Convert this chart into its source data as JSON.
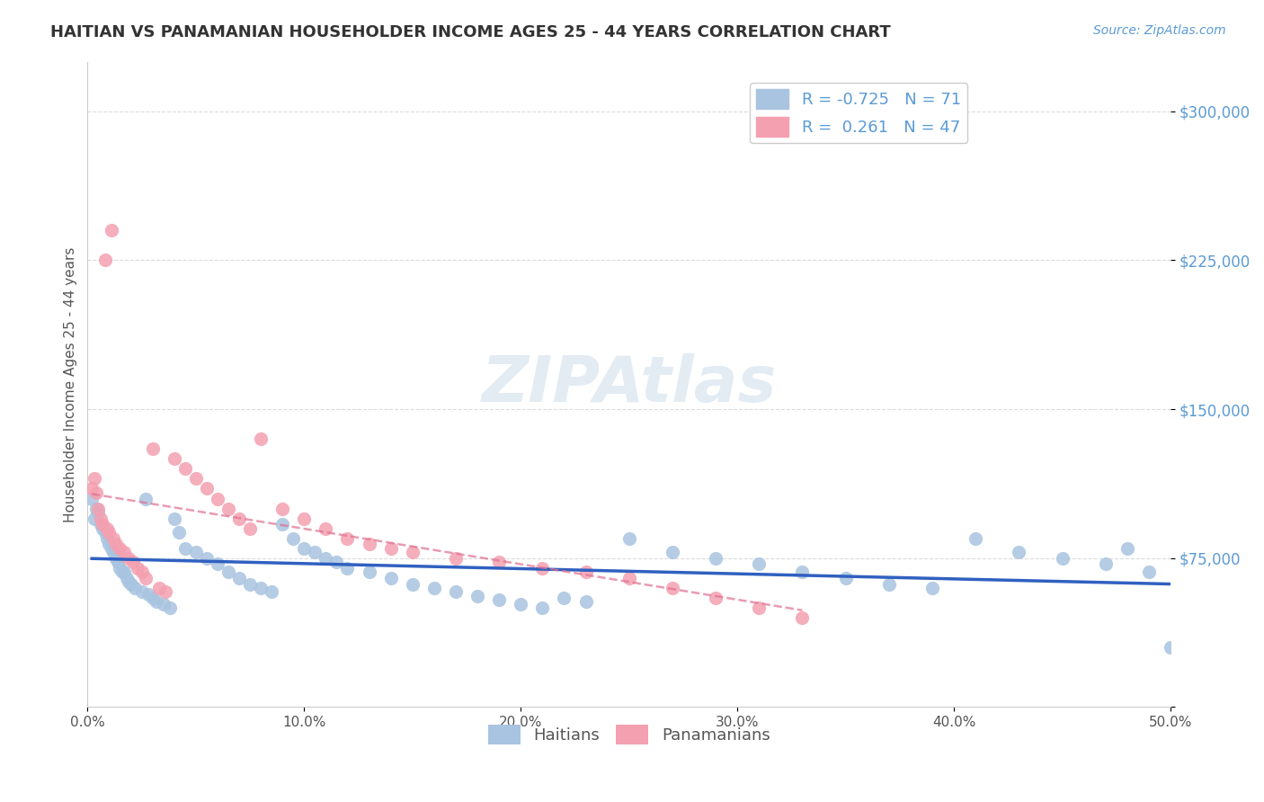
{
  "title": "HAITIAN VS PANAMANIAN HOUSEHOLDER INCOME AGES 25 - 44 YEARS CORRELATION CHART",
  "source": "Source: ZipAtlas.com",
  "xlabel_bottom": "",
  "ylabel": "Householder Income Ages 25 - 44 years",
  "xlim": [
    0.0,
    0.5
  ],
  "ylim": [
    0,
    325000
  ],
  "yticks": [
    0,
    75000,
    150000,
    225000,
    300000
  ],
  "ytick_labels": [
    "",
    "$75,000",
    "$150,000",
    "$225,000",
    "$300,000"
  ],
  "xticks": [
    0.0,
    0.1,
    0.2,
    0.3,
    0.4,
    0.5
  ],
  "xtick_labels": [
    "0.0%",
    "10.0%",
    "20.0%",
    "30.0%",
    "40.0%",
    "50.0%"
  ],
  "haitian_color": "#a8c4e0",
  "panamanian_color": "#f4a0b0",
  "haitian_line_color": "#3060c0",
  "panamanian_line_color": "#e07090",
  "legend_R_haitian": "-0.725",
  "legend_N_haitian": "71",
  "legend_R_panamanian": "0.261",
  "legend_N_panamanian": "47",
  "title_color": "#333333",
  "source_color": "#5b9bd5",
  "yaxis_label_color": "#5b9bd5",
  "background_color": "#ffffff",
  "grid_color": "#cccccc",
  "watermark": "ZIPAtlas",
  "haitian_x": [
    0.002,
    0.003,
    0.004,
    0.005,
    0.006,
    0.007,
    0.008,
    0.009,
    0.01,
    0.011,
    0.012,
    0.013,
    0.014,
    0.015,
    0.016,
    0.017,
    0.018,
    0.019,
    0.02,
    0.022,
    0.025,
    0.027,
    0.028,
    0.03,
    0.032,
    0.035,
    0.038,
    0.04,
    0.042,
    0.045,
    0.05,
    0.055,
    0.06,
    0.065,
    0.07,
    0.075,
    0.08,
    0.085,
    0.09,
    0.095,
    0.1,
    0.105,
    0.11,
    0.115,
    0.12,
    0.13,
    0.14,
    0.15,
    0.16,
    0.17,
    0.18,
    0.19,
    0.2,
    0.21,
    0.22,
    0.23,
    0.25,
    0.27,
    0.29,
    0.31,
    0.33,
    0.35,
    0.37,
    0.39,
    0.41,
    0.43,
    0.45,
    0.47,
    0.49,
    0.5,
    0.48
  ],
  "haitian_y": [
    105000,
    95000,
    100000,
    98000,
    92000,
    90000,
    88000,
    85000,
    82000,
    80000,
    78000,
    75000,
    73000,
    70000,
    68000,
    68000,
    65000,
    63000,
    62000,
    60000,
    58000,
    105000,
    57000,
    55000,
    53000,
    52000,
    50000,
    95000,
    88000,
    80000,
    78000,
    75000,
    72000,
    68000,
    65000,
    62000,
    60000,
    58000,
    92000,
    85000,
    80000,
    78000,
    75000,
    73000,
    70000,
    68000,
    65000,
    62000,
    60000,
    58000,
    56000,
    54000,
    52000,
    50000,
    55000,
    53000,
    85000,
    78000,
    75000,
    72000,
    68000,
    65000,
    62000,
    60000,
    85000,
    78000,
    75000,
    72000,
    68000,
    30000,
    80000
  ],
  "panamanian_x": [
    0.002,
    0.003,
    0.004,
    0.005,
    0.006,
    0.007,
    0.008,
    0.009,
    0.01,
    0.011,
    0.012,
    0.013,
    0.015,
    0.017,
    0.019,
    0.021,
    0.023,
    0.025,
    0.027,
    0.03,
    0.033,
    0.036,
    0.04,
    0.045,
    0.05,
    0.055,
    0.06,
    0.065,
    0.07,
    0.075,
    0.08,
    0.09,
    0.1,
    0.11,
    0.12,
    0.13,
    0.14,
    0.15,
    0.17,
    0.19,
    0.21,
    0.23,
    0.25,
    0.27,
    0.29,
    0.31,
    0.33
  ],
  "panamanian_y": [
    110000,
    115000,
    108000,
    100000,
    95000,
    92000,
    225000,
    90000,
    88000,
    240000,
    85000,
    82000,
    80000,
    78000,
    75000,
    73000,
    70000,
    68000,
    65000,
    130000,
    60000,
    58000,
    125000,
    120000,
    115000,
    110000,
    105000,
    100000,
    95000,
    90000,
    135000,
    100000,
    95000,
    90000,
    85000,
    82000,
    80000,
    78000,
    75000,
    73000,
    70000,
    68000,
    65000,
    60000,
    55000,
    50000,
    45000
  ]
}
